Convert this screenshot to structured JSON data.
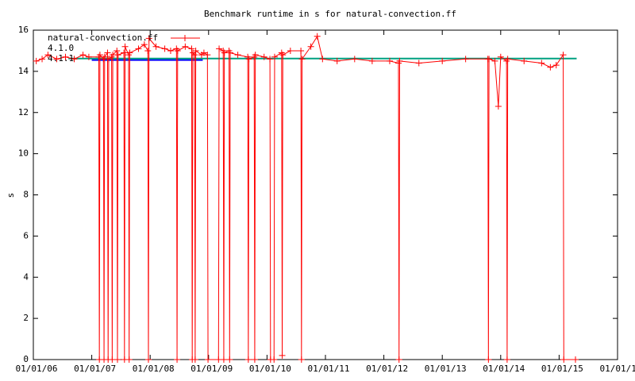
{
  "chart_data": {
    "type": "line",
    "title": "Benchmark runtime in s for natural-convection.ff",
    "y_label": "s",
    "xlim": [
      2006,
      2016
    ],
    "xticks": [
      {
        "value": 2006,
        "label": "01/01/06"
      },
      {
        "value": 2007,
        "label": "01/01/07"
      },
      {
        "value": 2008,
        "label": "01/01/08"
      },
      {
        "value": 2009,
        "label": "01/01/09"
      },
      {
        "value": 2010,
        "label": "01/01/10"
      },
      {
        "value": 2011,
        "label": "01/01/11"
      },
      {
        "value": 2012,
        "label": "01/01/12"
      },
      {
        "value": 2013,
        "label": "01/01/13"
      },
      {
        "value": 2014,
        "label": "01/01/14"
      },
      {
        "value": 2015,
        "label": "01/01/15"
      },
      {
        "value": 2016,
        "label": "01/01/16"
      }
    ],
    "ylim": [
      0,
      16
    ],
    "yticks": [
      0,
      2,
      4,
      6,
      8,
      10,
      12,
      14,
      16
    ],
    "grid": false,
    "legend": "top-left",
    "series": [
      {
        "name": "natural-convection.ff",
        "color": "#ff0000",
        "marker": "+",
        "x": [
          2006.05,
          2006.15,
          2006.25,
          2006.4,
          2006.55,
          2006.7,
          2006.85,
          2006.95,
          2007.12,
          2007.13,
          2007.14,
          2007.2,
          2007.21,
          2007.22,
          2007.27,
          2007.28,
          2007.29,
          2007.34,
          2007.35,
          2007.36,
          2007.43,
          2007.44,
          2007.45,
          2007.55,
          2007.56,
          2007.57,
          2007.63,
          2007.64,
          2007.65,
          2007.8,
          2007.9,
          2007.96,
          2007.97,
          2007.98,
          2008.1,
          2008.25,
          2008.35,
          2008.45,
          2008.46,
          2008.47,
          2008.6,
          2008.71,
          2008.72,
          2008.73,
          2008.76,
          2008.77,
          2008.78,
          2008.88,
          2008.92,
          2008.98,
          2008.99,
          2009.17,
          2009.18,
          2009.25,
          2009.26,
          2009.27,
          2009.35,
          2009.36,
          2009.37,
          2009.5,
          2009.67,
          2009.68,
          2009.69,
          2009.78,
          2009.79,
          2009.8,
          2009.95,
          2010.05,
          2010.06,
          2010.12,
          2010.13,
          2010.25,
          2010.26,
          2010.27,
          2010.4,
          2010.58,
          2010.59,
          2010.6,
          2010.75,
          2010.86,
          2010.95,
          2011.2,
          2011.5,
          2011.8,
          2012.1,
          2012.25,
          2012.26,
          2012.27,
          2012.6,
          2013.0,
          2013.4,
          2013.78,
          2013.79,
          2013.8,
          2013.9,
          2013.96,
          2014.0,
          2014.1,
          2014.11,
          2014.12,
          2014.4,
          2014.7,
          2014.85,
          2014.95,
          2015.07,
          2015.08,
          2015.28
        ],
        "values": [
          14.5,
          14.6,
          14.8,
          14.6,
          14.7,
          14.6,
          14.8,
          14.7,
          14.7,
          0,
          14.8,
          14.6,
          0,
          14.7,
          14.9,
          0,
          14.6,
          14.7,
          0,
          14.8,
          15.0,
          0,
          14.8,
          14.9,
          0,
          15.2,
          14.8,
          0,
          14.9,
          15.1,
          15.3,
          15.0,
          0,
          15.6,
          15.2,
          15.1,
          15.0,
          15.1,
          0,
          15.0,
          15.2,
          15.1,
          0,
          14.9,
          14.8,
          0,
          15.0,
          14.8,
          14.9,
          14.8,
          0,
          0,
          15.1,
          15.0,
          0,
          14.9,
          15.0,
          0,
          14.9,
          14.8,
          14.7,
          0,
          14.6,
          14.7,
          0,
          14.8,
          14.7,
          14.6,
          0,
          0,
          14.7,
          14.9,
          0.2,
          14.8,
          15.0,
          15.0,
          0,
          14.6,
          15.2,
          15.7,
          14.6,
          14.5,
          14.6,
          14.5,
          14.5,
          14.4,
          0,
          14.5,
          14.4,
          14.5,
          14.6,
          14.6,
          0,
          14.6,
          14.5,
          12.3,
          14.7,
          14.5,
          0,
          14.6,
          14.5,
          14.4,
          14.2,
          14.3,
          14.8,
          0,
          0
        ]
      },
      {
        "name": "4.1.0",
        "color": "#0000ff",
        "x": [
          2007.0,
          2008.9
        ],
        "values": [
          14.55,
          14.55
        ]
      },
      {
        "name": "4.1.1",
        "color": "#00a080",
        "x": [
          2006.6,
          2015.3
        ],
        "values": [
          14.62,
          14.62
        ]
      }
    ]
  }
}
